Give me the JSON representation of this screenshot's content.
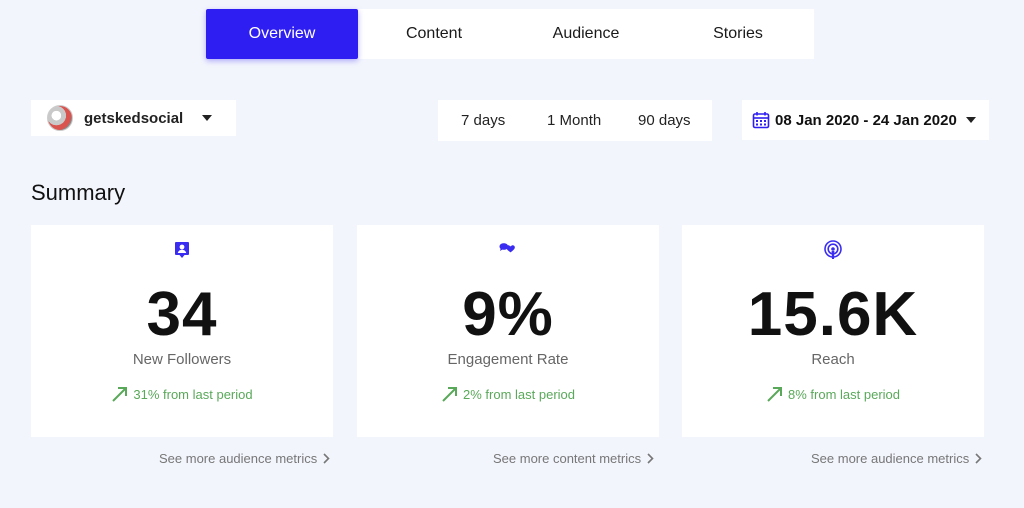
{
  "tabs": [
    {
      "label": "Overview",
      "active": true
    },
    {
      "label": "Content",
      "active": false
    },
    {
      "label": "Audience",
      "active": false
    },
    {
      "label": "Stories",
      "active": false
    }
  ],
  "account": {
    "name": "getskedsocial"
  },
  "periods": [
    "7 days",
    "1 Month",
    "90 days"
  ],
  "date_range": "08 Jan 2020 - 24 Jan 2020",
  "summary": {
    "title": "Summary",
    "cards": [
      {
        "icon": "follower-icon",
        "value": "34",
        "label": "New Followers",
        "change": "31% from last period",
        "link": "See more audience metrics"
      },
      {
        "icon": "engagement-icon",
        "value": "9%",
        "label": "Engagement Rate",
        "change": "2% from last period",
        "link": "See more content metrics"
      },
      {
        "icon": "reach-icon",
        "value": "15.6K",
        "label": "Reach",
        "change": "8% from last period",
        "link": "See more audience metrics"
      }
    ]
  },
  "colors": {
    "accent": "#2f1ef2",
    "positive": "#5aa85a",
    "background": "#f3f5fd"
  }
}
